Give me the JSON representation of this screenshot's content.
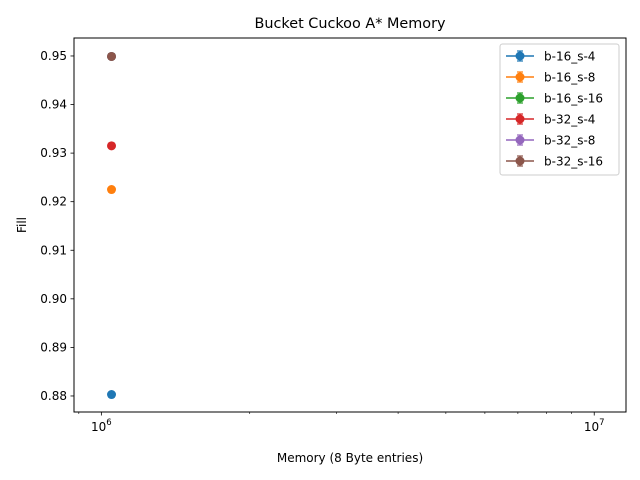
{
  "chart_data": {
    "type": "scatter",
    "title": "Bucket Cuckoo A* Memory",
    "xlabel": "Memory (8 Byte entries)",
    "ylabel": "Fill",
    "xscale": "log",
    "xlim": [
      880000,
      11600000
    ],
    "ylim": [
      0.8767,
      0.9537
    ],
    "xticks": [
      {
        "value": 1000000,
        "base": "10",
        "exp": "6"
      },
      {
        "value": 10000000,
        "base": "10",
        "exp": "7"
      }
    ],
    "yticks": [
      0.88,
      0.89,
      0.9,
      0.91,
      0.92,
      0.93,
      0.94,
      0.95
    ],
    "ytick_labels": [
      "0.88",
      "0.89",
      "0.90",
      "0.91",
      "0.92",
      "0.93",
      "0.94",
      "0.95"
    ],
    "grid": false,
    "legend_position": "top-right",
    "series": [
      {
        "name": "b-16_s-4",
        "color": "#1f77b4",
        "x": [
          1048576
        ],
        "y": [
          0.8803
        ]
      },
      {
        "name": "b-16_s-8",
        "color": "#ff7f0e",
        "x": [
          1048576
        ],
        "y": [
          0.9225
        ]
      },
      {
        "name": "b-16_s-16",
        "color": "#2ca02c",
        "x": [
          1048576
        ],
        "y": [
          0.9499
        ]
      },
      {
        "name": "b-32_s-4",
        "color": "#d62728",
        "x": [
          1048576
        ],
        "y": [
          0.9315
        ]
      },
      {
        "name": "b-32_s-8",
        "color": "#9467bd",
        "x": [
          1048576
        ],
        "y": [
          0.9499
        ]
      },
      {
        "name": "b-32_s-16",
        "color": "#8c564b",
        "x": [
          1048576
        ],
        "y": [
          0.9499
        ]
      }
    ]
  }
}
